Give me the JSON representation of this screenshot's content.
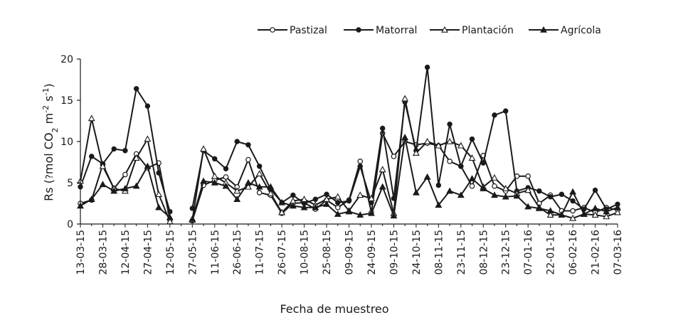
{
  "chart_data": {
    "type": "line",
    "xlabel": "Fecha de muestreo",
    "ylabel": "Rs (?mol CO2 m-2 s-1)",
    "ylabel_parts": {
      "lead": "Rs (",
      "glyph": "?",
      "mid": "mol CO",
      "sub": "2",
      "m": " m",
      "sup1": "-2",
      "s": " s",
      "sup2": "-1",
      "close": ")"
    },
    "ylim": [
      0,
      20
    ],
    "yticks": [
      0,
      5,
      10,
      15,
      20
    ],
    "grid": false,
    "legend_position": "top-right",
    "x_tick_labels": [
      "13-03-15",
      "28-03-15",
      "12-04-15",
      "27-04-15",
      "12-05-15",
      "27-05-15",
      "11-06-15",
      "26-06-15",
      "11-07-15",
      "26-07-15",
      "10-08-15",
      "25-08-15",
      "09-09-15",
      "24-09-15",
      "09-10-15",
      "24-10-15",
      "08-11-15",
      "23-11-15",
      "08-12-15",
      "23-12-15",
      "07-01-16",
      "22-01-16",
      "06-02-16",
      "21-02-16",
      "07-03-16"
    ],
    "x_tick_index": [
      0,
      2,
      4,
      6,
      8,
      10,
      12,
      14,
      16,
      18,
      20,
      22,
      24,
      26,
      28,
      30,
      32,
      34,
      36,
      38,
      40,
      42,
      44,
      46,
      48
    ],
    "series": [
      {
        "name": "Pastizal",
        "marker": "open-circle",
        "segments": [
          {
            "x": [
              0,
              1,
              2,
              3,
              4,
              5,
              6,
              7,
              8
            ],
            "y": [
              2.5,
              2.9,
              7.2,
              4.3,
              6.0,
              8.5,
              6.8,
              7.4,
              0.5
            ]
          },
          {
            "x": [
              10,
              11,
              12,
              13,
              14,
              15,
              16,
              17,
              18,
              19,
              20,
              21,
              22,
              23,
              24,
              25,
              26,
              27,
              28,
              29,
              30,
              31,
              32,
              33,
              34,
              35,
              36,
              37,
              38,
              39,
              40,
              41,
              42,
              43,
              44,
              45,
              46,
              47,
              48
            ],
            "y": [
              0.4,
              4.7,
              5.3,
              5.7,
              4.5,
              7.8,
              3.8,
              3.5,
              1.3,
              2.5,
              2.6,
              1.8,
              2.9,
              2.0,
              2.9,
              7.6,
              1.4,
              11.0,
              8.2,
              10.0,
              9.6,
              9.8,
              9.5,
              7.6,
              7.0,
              4.6,
              8.3,
              4.6,
              4.0,
              5.8,
              5.8,
              2.5,
              3.5,
              1.6,
              1.6,
              2.0,
              1.4,
              2.0,
              1.7
            ]
          }
        ]
      },
      {
        "name": "Matorral",
        "marker": "filled-circle",
        "segments": [
          {
            "x": [
              0,
              1,
              2,
              3,
              4,
              5,
              6,
              7,
              8
            ],
            "y": [
              4.5,
              8.2,
              7.3,
              9.1,
              8.9,
              16.4,
              14.3,
              6.2,
              1.5
            ]
          },
          {
            "x": [
              10,
              11,
              12,
              13,
              14,
              15,
              16,
              17,
              18,
              19,
              20,
              21,
              22,
              23,
              24,
              25,
              26,
              27,
              28,
              29,
              30,
              31,
              32,
              33,
              34,
              35,
              36,
              37,
              38,
              39,
              40,
              41,
              42,
              43,
              44,
              45,
              46,
              47,
              48
            ],
            "y": [
              1.9,
              8.9,
              7.9,
              6.7,
              10.0,
              9.6,
              7.0,
              4.2,
              2.6,
              3.5,
              2.5,
              3.0,
              3.6,
              2.6,
              2.8,
              7.0,
              2.6,
              11.6,
              3.1,
              14.8,
              8.9,
              19.0,
              4.7,
              12.1,
              7.0,
              10.3,
              7.4,
              13.2,
              13.7,
              4.0,
              4.4,
              4.0,
              3.3,
              3.6,
              2.8,
              1.8,
              4.1,
              1.8,
              2.4
            ]
          }
        ]
      },
      {
        "name": "Plantación",
        "marker": "open-triangle",
        "segments": [
          {
            "x": [
              0,
              1,
              2,
              3,
              4,
              5,
              6,
              7,
              8
            ],
            "y": [
              5.2,
              12.8,
              7.0,
              4.3,
              4.0,
              8.0,
              10.3,
              3.6,
              0.3
            ]
          },
          {
            "x": [
              10,
              11,
              12,
              13,
              14,
              15,
              16,
              17,
              18,
              19,
              20,
              21,
              22,
              23,
              24,
              25,
              26,
              27,
              28,
              29,
              30,
              31,
              32,
              33,
              34,
              35,
              36,
              37,
              38,
              39,
              40,
              41,
              42,
              43,
              44,
              45,
              46,
              47,
              48
            ],
            "y": [
              0.5,
              9.1,
              5.8,
              5.0,
              4.0,
              4.5,
              6.1,
              3.7,
              1.4,
              2.8,
              3.0,
              2.3,
              3.0,
              3.3,
              1.6,
              3.5,
              3.1,
              6.6,
              1.3,
              15.2,
              8.6,
              10.0,
              9.5,
              10.0,
              9.5,
              8.0,
              4.5,
              5.6,
              4.3,
              3.7,
              4.1,
              2.0,
              1.1,
              1.1,
              0.7,
              1.2,
              1.1,
              0.9,
              1.4
            ]
          }
        ]
      },
      {
        "name": "Agrícola",
        "marker": "filled-triangle",
        "segments": [
          {
            "x": [
              0,
              1,
              2,
              3,
              4,
              5,
              6,
              7,
              8
            ],
            "y": [
              2.2,
              3.0,
              4.8,
              4.0,
              4.3,
              4.6,
              7.0,
              2.0,
              0.8
            ]
          },
          {
            "x": [
              10,
              11,
              12,
              13,
              14,
              15,
              16,
              17,
              18,
              19,
              20,
              21,
              22,
              23,
              24,
              25,
              26,
              27,
              28,
              29,
              30,
              31,
              32,
              33,
              34,
              35,
              36,
              37,
              38,
              39,
              40,
              41,
              42,
              43,
              44,
              45,
              46,
              47,
              48
            ],
            "y": [
              0.6,
              5.2,
              5.0,
              4.6,
              3.0,
              5.0,
              4.5,
              4.5,
              2.6,
              2.2,
              2.0,
              2.0,
              2.4,
              1.2,
              1.5,
              1.1,
              1.3,
              4.5,
              1.0,
              10.5,
              3.8,
              5.7,
              2.3,
              4.0,
              3.5,
              5.5,
              4.3,
              3.5,
              3.3,
              3.4,
              2.1,
              1.9,
              1.6,
              1.1,
              3.9,
              1.2,
              1.9,
              1.5,
              2.0
            ]
          }
        ]
      }
    ]
  }
}
